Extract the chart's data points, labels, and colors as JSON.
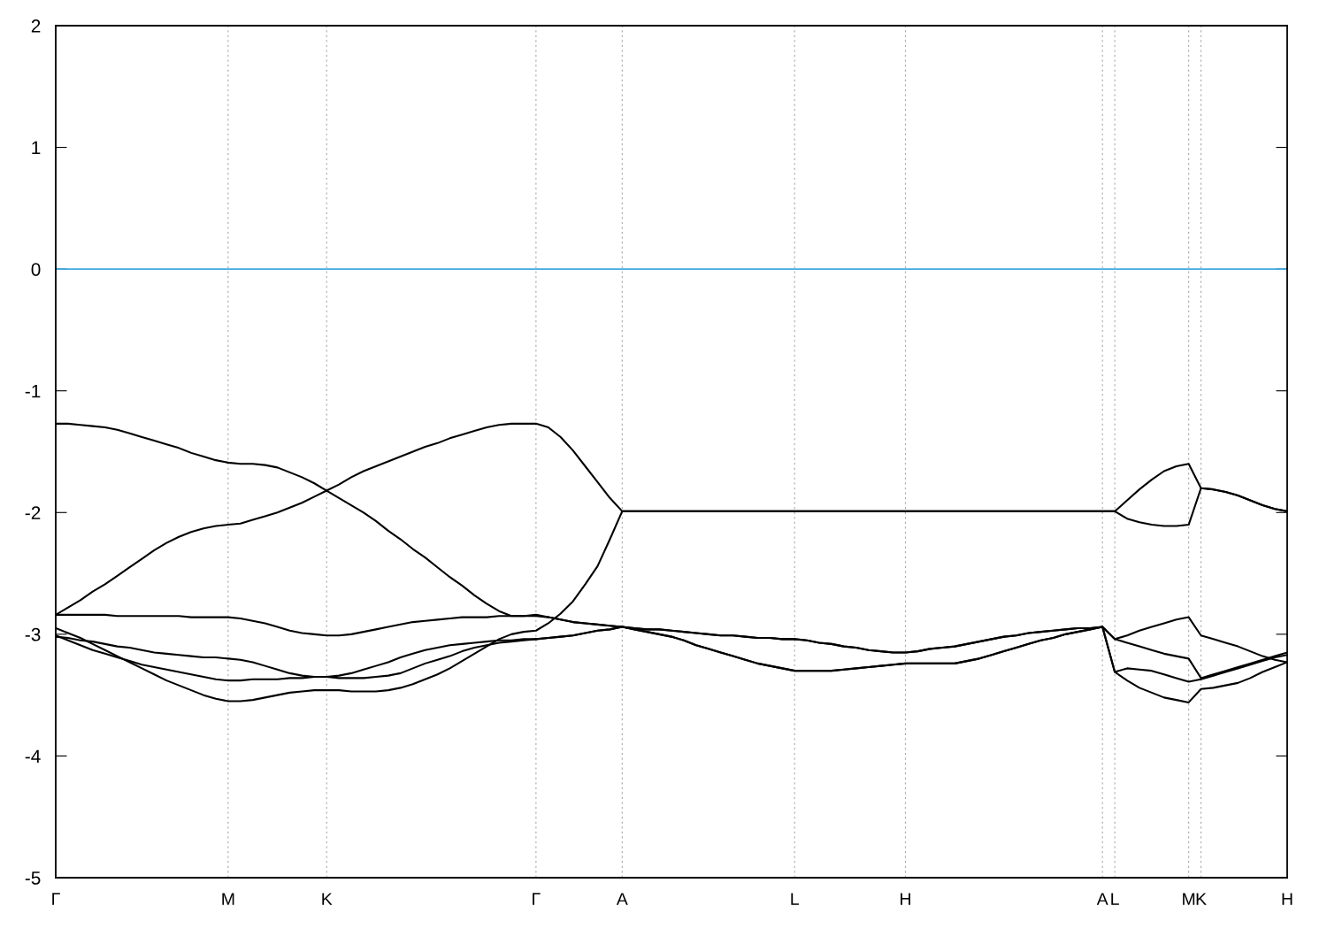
{
  "chart_data": {
    "type": "line",
    "categories": [
      "Γ",
      null,
      null,
      null,
      null,
      null,
      null,
      null,
      null,
      null,
      null,
      null,
      null,
      null,
      "M",
      null,
      null,
      null,
      null,
      null,
      null,
      null,
      "K",
      null,
      null,
      null,
      null,
      null,
      null,
      null,
      null,
      null,
      null,
      null,
      null,
      null,
      null,
      null,
      null,
      "Γ",
      null,
      null,
      null,
      null,
      null,
      null,
      "A",
      null,
      null,
      null,
      null,
      null,
      null,
      null,
      null,
      null,
      null,
      null,
      null,
      null,
      "L",
      null,
      null,
      null,
      null,
      null,
      null,
      null,
      null,
      "H",
      null,
      null,
      null,
      null,
      null,
      null,
      null,
      null,
      null,
      null,
      null,
      null,
      null,
      null,
      null,
      "A",
      "L",
      null,
      null,
      null,
      null,
      null,
      "M",
      "K",
      null,
      null,
      null,
      null,
      null,
      null,
      "H"
    ],
    "ylim": [
      -5,
      2
    ],
    "yticks": [
      -5,
      -4,
      -3,
      -2,
      -1,
      0,
      1,
      2
    ],
    "grid": "x",
    "legend": false,
    "marker": "none",
    "line_style": "solid",
    "ref_lines": [
      {
        "axis": "y",
        "value": 0,
        "color": "#3fa9e0",
        "line_style": "solid"
      }
    ],
    "series": [
      {
        "color": "#000000",
        "values": [
          -1.27,
          -1.27,
          -1.28,
          -1.29,
          -1.3,
          -1.32,
          -1.35,
          -1.38,
          -1.41,
          -1.44,
          -1.47,
          -1.51,
          -1.54,
          -1.57,
          -1.59,
          -1.6,
          -1.6,
          -1.61,
          -1.63,
          -1.67,
          -1.71,
          -1.76,
          -1.82,
          -1.88,
          -1.94,
          -2.0,
          -2.07,
          -2.15,
          -2.22,
          -2.3,
          -2.37,
          -2.45,
          -2.53,
          -2.6,
          -2.68,
          -2.75,
          -2.81,
          -2.85,
          -2.85,
          -2.84,
          -2.86,
          -2.88,
          -2.9,
          -2.91,
          -2.92,
          -2.93,
          -2.94,
          -2.95,
          -2.96,
          -2.96,
          -2.97,
          -2.98,
          -2.99,
          -3.0,
          -3.01,
          -3.01,
          -3.02,
          -3.03,
          -3.03,
          -3.04,
          -3.04,
          -3.05,
          -3.07,
          -3.08,
          -3.1,
          -3.11,
          -3.13,
          -3.14,
          -3.15,
          -3.15,
          -3.14,
          -3.12,
          -3.11,
          -3.1,
          -3.08,
          -3.06,
          -3.04,
          -3.02,
          -3.01,
          -2.99,
          -2.98,
          -2.97,
          -2.96,
          -2.95,
          -2.95,
          -2.94,
          -3.04,
          -3.01,
          -2.97,
          -2.94,
          -2.91,
          -2.88,
          -2.86,
          -3.01,
          -3.04,
          -3.07,
          -3.1,
          -3.14,
          -3.18,
          -3.21,
          -3.23
        ]
      },
      {
        "color": "#000000",
        "values": [
          -2.84,
          -2.78,
          -2.72,
          -2.65,
          -2.59,
          -2.52,
          -2.45,
          -2.38,
          -2.31,
          -2.25,
          -2.2,
          -2.16,
          -2.13,
          -2.11,
          -2.1,
          -2.09,
          -2.06,
          -2.03,
          -2.0,
          -1.96,
          -1.92,
          -1.87,
          -1.82,
          -1.77,
          -1.71,
          -1.66,
          -1.62,
          -1.58,
          -1.54,
          -1.5,
          -1.46,
          -1.43,
          -1.39,
          -1.36,
          -1.33,
          -1.3,
          -1.28,
          -1.27,
          -1.27,
          -1.27,
          -1.3,
          -1.38,
          -1.49,
          -1.62,
          -1.75,
          -1.88,
          -1.99,
          -1.99,
          -1.99,
          -1.99,
          -1.99,
          -1.99,
          -1.99,
          -1.99,
          -1.99,
          -1.99,
          -1.99,
          -1.99,
          -1.99,
          -1.99,
          -1.99,
          -1.99,
          -1.99,
          -1.99,
          -1.99,
          -1.99,
          -1.99,
          -1.99,
          -1.99,
          -1.99,
          -1.99,
          -1.99,
          -1.99,
          -1.99,
          -1.99,
          -1.99,
          -1.99,
          -1.99,
          -1.99,
          -1.99,
          -1.99,
          -1.99,
          -1.99,
          -1.99,
          -1.99,
          -1.99,
          -1.99,
          -1.9,
          -1.81,
          -1.73,
          -1.66,
          -1.62,
          -1.6,
          -1.8,
          -1.81,
          -1.83,
          -1.86,
          -1.9,
          -1.94,
          -1.97,
          -1.99
        ]
      },
      {
        "color": "#000000",
        "values": [
          -2.84,
          -2.84,
          -2.84,
          -2.84,
          -2.84,
          -2.85,
          -2.85,
          -2.85,
          -2.85,
          -2.85,
          -2.85,
          -2.86,
          -2.86,
          -2.86,
          -2.86,
          -2.87,
          -2.89,
          -2.91,
          -2.94,
          -2.97,
          -2.99,
          -3.0,
          -3.01,
          -3.01,
          -3.0,
          -2.98,
          -2.96,
          -2.94,
          -2.92,
          -2.9,
          -2.89,
          -2.88,
          -2.87,
          -2.86,
          -2.86,
          -2.86,
          -2.85,
          -2.85,
          -2.85,
          -2.85,
          -2.86,
          -2.88,
          -2.9,
          -2.91,
          -2.92,
          -2.93,
          -2.94,
          -2.95,
          -2.96,
          -2.96,
          -2.97,
          -2.98,
          -2.99,
          -3.0,
          -3.01,
          -3.01,
          -3.02,
          -3.03,
          -3.03,
          -3.04,
          -3.04,
          -3.05,
          -3.07,
          -3.08,
          -3.1,
          -3.11,
          -3.13,
          -3.14,
          -3.15,
          -3.15,
          -3.14,
          -3.12,
          -3.11,
          -3.1,
          -3.08,
          -3.06,
          -3.04,
          -3.02,
          -3.01,
          -2.99,
          -2.98,
          -2.97,
          -2.96,
          -2.95,
          -2.95,
          -2.94,
          -3.04,
          -3.07,
          -3.1,
          -3.13,
          -3.16,
          -3.18,
          -3.2,
          -3.36,
          -3.33,
          -3.3,
          -3.27,
          -3.24,
          -3.21,
          -3.18,
          -3.15
        ]
      },
      {
        "color": "#000000",
        "values": [
          -2.95,
          -2.99,
          -3.03,
          -3.08,
          -3.13,
          -3.18,
          -3.23,
          -3.28,
          -3.33,
          -3.38,
          -3.42,
          -3.46,
          -3.5,
          -3.53,
          -3.55,
          -3.55,
          -3.54,
          -3.52,
          -3.5,
          -3.48,
          -3.47,
          -3.46,
          -3.46,
          -3.46,
          -3.47,
          -3.47,
          -3.47,
          -3.46,
          -3.44,
          -3.41,
          -3.37,
          -3.33,
          -3.28,
          -3.22,
          -3.16,
          -3.1,
          -3.04,
          -3.0,
          -2.98,
          -2.97,
          -2.91,
          -2.83,
          -2.73,
          -2.59,
          -2.44,
          -2.22,
          -1.99,
          -1.99,
          -1.99,
          -1.99,
          -1.99,
          -1.99,
          -1.99,
          -1.99,
          -1.99,
          -1.99,
          -1.99,
          -1.99,
          -1.99,
          -1.99,
          -1.99,
          -1.99,
          -1.99,
          -1.99,
          -1.99,
          -1.99,
          -1.99,
          -1.99,
          -1.99,
          -1.99,
          -1.99,
          -1.99,
          -1.99,
          -1.99,
          -1.99,
          -1.99,
          -1.99,
          -1.99,
          -1.99,
          -1.99,
          -1.99,
          -1.99,
          -1.99,
          -1.99,
          -1.99,
          -1.99,
          -1.99,
          -2.05,
          -2.08,
          -2.1,
          -2.11,
          -2.11,
          -2.1,
          -1.8,
          -1.81,
          -1.83,
          -1.86,
          -1.9,
          -1.94,
          -1.97,
          -1.99
        ]
      },
      {
        "color": "#000000",
        "values": [
          -3.01,
          -3.05,
          -3.09,
          -3.13,
          -3.16,
          -3.19,
          -3.22,
          -3.25,
          -3.27,
          -3.29,
          -3.31,
          -3.33,
          -3.35,
          -3.37,
          -3.38,
          -3.38,
          -3.37,
          -3.37,
          -3.37,
          -3.36,
          -3.36,
          -3.35,
          -3.35,
          -3.34,
          -3.32,
          -3.29,
          -3.26,
          -3.23,
          -3.19,
          -3.16,
          -3.13,
          -3.11,
          -3.09,
          -3.08,
          -3.07,
          -3.06,
          -3.05,
          -3.05,
          -3.04,
          -3.04,
          -3.03,
          -3.02,
          -3.01,
          -2.99,
          -2.97,
          -2.96,
          -2.94,
          -2.96,
          -2.98,
          -3.0,
          -3.02,
          -3.05,
          -3.09,
          -3.12,
          -3.15,
          -3.18,
          -3.21,
          -3.24,
          -3.26,
          -3.28,
          -3.3,
          -3.3,
          -3.3,
          -3.3,
          -3.29,
          -3.28,
          -3.27,
          -3.26,
          -3.25,
          -3.24,
          -3.24,
          -3.24,
          -3.24,
          -3.24,
          -3.22,
          -3.2,
          -3.17,
          -3.14,
          -3.11,
          -3.08,
          -3.05,
          -3.03,
          -3.0,
          -2.98,
          -2.96,
          -2.94,
          -3.31,
          -3.28,
          -3.29,
          -3.3,
          -3.33,
          -3.36,
          -3.39,
          -3.37,
          -3.34,
          -3.31,
          -3.28,
          -3.25,
          -3.22,
          -3.19,
          -3.17
        ]
      },
      {
        "color": "#000000",
        "values": [
          -3.02,
          -3.03,
          -3.05,
          -3.06,
          -3.08,
          -3.1,
          -3.11,
          -3.13,
          -3.15,
          -3.16,
          -3.17,
          -3.18,
          -3.19,
          -3.19,
          -3.2,
          -3.21,
          -3.23,
          -3.26,
          -3.29,
          -3.32,
          -3.34,
          -3.35,
          -3.35,
          -3.36,
          -3.36,
          -3.36,
          -3.35,
          -3.34,
          -3.32,
          -3.28,
          -3.24,
          -3.21,
          -3.18,
          -3.14,
          -3.11,
          -3.09,
          -3.07,
          -3.06,
          -3.05,
          -3.04,
          -3.03,
          -3.02,
          -3.01,
          -2.99,
          -2.97,
          -2.96,
          -2.94,
          -2.96,
          -2.98,
          -3.0,
          -3.02,
          -3.05,
          -3.09,
          -3.12,
          -3.15,
          -3.18,
          -3.21,
          -3.24,
          -3.26,
          -3.28,
          -3.3,
          -3.3,
          -3.3,
          -3.3,
          -3.29,
          -3.28,
          -3.27,
          -3.26,
          -3.25,
          -3.24,
          -3.24,
          -3.24,
          -3.24,
          -3.24,
          -3.22,
          -3.2,
          -3.17,
          -3.14,
          -3.11,
          -3.08,
          -3.05,
          -3.03,
          -3.0,
          -2.98,
          -2.96,
          -2.94,
          -3.31,
          -3.38,
          -3.44,
          -3.48,
          -3.52,
          -3.54,
          -3.56,
          -3.45,
          -3.44,
          -3.42,
          -3.4,
          -3.36,
          -3.31,
          -3.27,
          -3.23
        ]
      }
    ]
  }
}
